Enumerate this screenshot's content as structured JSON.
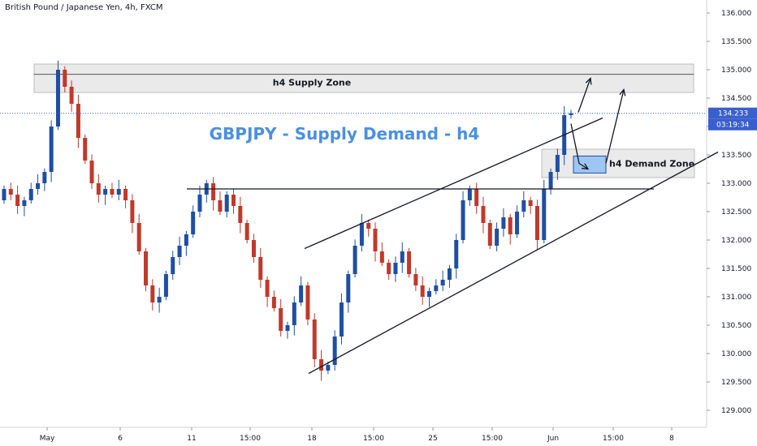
{
  "header": {
    "symbol_title": "British Pound / Japanese Yen, 4h, FXCM"
  },
  "annotations": {
    "main_title": "GBPJPY - Supply Demand - h4",
    "supply_zone_label": "h4 Supply Zone",
    "demand_zone_label": "h4 Demand Zone"
  },
  "price_axis": {
    "current_price": "134.233",
    "countdown": "03:19:34"
  },
  "colors": {
    "bull": "#1e4fa3",
    "bear": "#c0392b",
    "title": "#4a90e2",
    "price_line": "#3a5fcd",
    "zone_fill": "#e6e6e6",
    "demand_box": "#9ec6f2"
  },
  "chart_data": {
    "type": "candlestick",
    "symbol": "GBPJPY",
    "timeframe": "4h",
    "ylim": [
      128.8,
      136.2
    ],
    "y_ticks": [
      "129.000",
      "129.500",
      "130.000",
      "130.500",
      "131.000",
      "131.500",
      "132.000",
      "132.500",
      "133.000",
      "133.500",
      "134.000",
      "134.500",
      "135.000",
      "135.500",
      "136.000"
    ],
    "x_ticks": [
      "May",
      "6",
      "11",
      "15:00",
      "18",
      "15:00",
      "25",
      "15:00",
      "Jun",
      "15:00",
      "8"
    ],
    "current_price": 134.233,
    "supply_zone": [
      134.6,
      135.1
    ],
    "demand_zone": [
      133.1,
      133.6
    ],
    "resistance_level": 132.9,
    "closes": [
      132.9,
      132.8,
      132.6,
      132.7,
      132.9,
      133.0,
      133.2,
      134.0,
      135.0,
      134.7,
      134.4,
      133.8,
      133.4,
      133.0,
      132.8,
      132.9,
      132.8,
      132.9,
      132.7,
      132.3,
      131.8,
      131.2,
      130.9,
      131.0,
      131.4,
      131.7,
      131.9,
      132.1,
      132.5,
      132.8,
      133.0,
      132.7,
      132.5,
      132.8,
      132.6,
      132.3,
      132.0,
      131.7,
      131.3,
      131.0,
      130.8,
      130.4,
      130.5,
      130.9,
      131.2,
      130.6,
      129.9,
      129.7,
      129.8,
      130.3,
      130.9,
      131.4,
      131.9,
      132.3,
      132.2,
      131.8,
      131.6,
      131.4,
      131.6,
      131.8,
      131.4,
      131.2,
      131.0,
      131.1,
      131.2,
      131.3,
      131.5,
      132.0,
      132.7,
      132.9,
      132.6,
      132.3,
      131.9,
      132.2,
      132.4,
      132.1,
      132.5,
      132.7,
      132.6,
      132.0,
      132.9,
      133.2,
      133.5,
      134.2,
      134.233
    ]
  }
}
